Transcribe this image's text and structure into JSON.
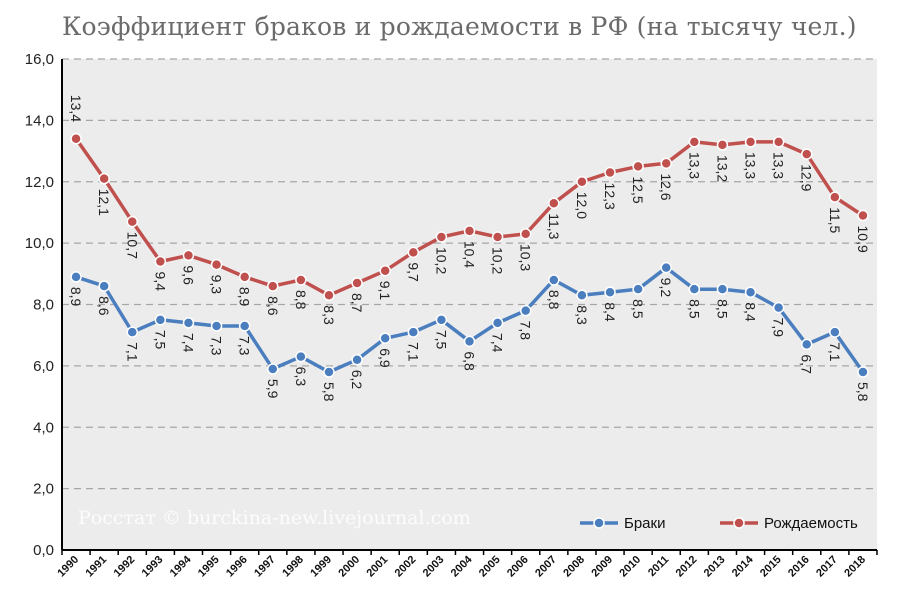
{
  "chart_data": {
    "type": "line",
    "title": "Коэффициент браков и рождаемости в РФ (на тысячу чел.)",
    "watermark": "Росстат © burckina-new.livejournal.com",
    "x": [
      "1990",
      "1991",
      "1992",
      "1993",
      "1994",
      "1995",
      "1996",
      "1997",
      "1998",
      "1999",
      "2000",
      "2001",
      "2002",
      "2003",
      "2004",
      "2005",
      "2006",
      "2007",
      "2008",
      "2009",
      "2010",
      "2011",
      "2012",
      "2013",
      "2014",
      "2015",
      "2016",
      "2017",
      "2018"
    ],
    "ylim": [
      0,
      16
    ],
    "yticks": [
      "0,0",
      "2,0",
      "4,0",
      "6,0",
      "8,0",
      "10,0",
      "12,0",
      "14,0",
      "16,0"
    ],
    "grid": true,
    "legend_position": "bottom-right",
    "series": [
      {
        "name": "Браки",
        "color": "#4a7ebf",
        "values": [
          8.9,
          8.6,
          7.1,
          7.5,
          7.4,
          7.3,
          7.3,
          5.9,
          6.3,
          5.8,
          6.2,
          6.9,
          7.1,
          7.5,
          6.8,
          7.4,
          7.8,
          8.8,
          8.3,
          8.4,
          8.5,
          9.2,
          8.5,
          8.5,
          8.4,
          7.9,
          6.7,
          7.1,
          5.8
        ],
        "labels": [
          "8,9",
          "8,6",
          "7,1",
          "7,5",
          "7,4",
          "7,3",
          "7,3",
          "5,9",
          "6,3",
          "5,8",
          "6,2",
          "6,9",
          "7,1",
          "7,5",
          "6,8",
          "7,4",
          "7,8",
          "8,8",
          "8,3",
          "8,4",
          "8,5",
          "9,2",
          "8,5",
          "8,5",
          "8,4",
          "7,9",
          "6,7",
          "7,1",
          "5,8"
        ]
      },
      {
        "name": "Рождаемость",
        "color": "#c0504d",
        "values": [
          13.4,
          12.1,
          10.7,
          9.4,
          9.6,
          9.3,
          8.9,
          8.6,
          8.8,
          8.3,
          8.7,
          9.1,
          9.7,
          10.2,
          10.4,
          10.2,
          10.3,
          11.3,
          12.0,
          12.3,
          12.5,
          12.6,
          13.3,
          13.2,
          13.3,
          13.3,
          12.9,
          11.5,
          10.9
        ],
        "labels": [
          "13,4",
          "12,1",
          "10,7",
          "9,4",
          "9,6",
          "9,3",
          "8,9",
          "8,6",
          "8,8",
          "8,3",
          "8,7",
          "9,1",
          "9,7",
          "10,2",
          "10,4",
          "10,2",
          "10,3",
          "11,3",
          "12,0",
          "12,3",
          "12,5",
          "12,6",
          "13,3",
          "13,2",
          "13,3",
          "13,3",
          "12,9",
          "11,5",
          "10,9"
        ]
      }
    ]
  }
}
